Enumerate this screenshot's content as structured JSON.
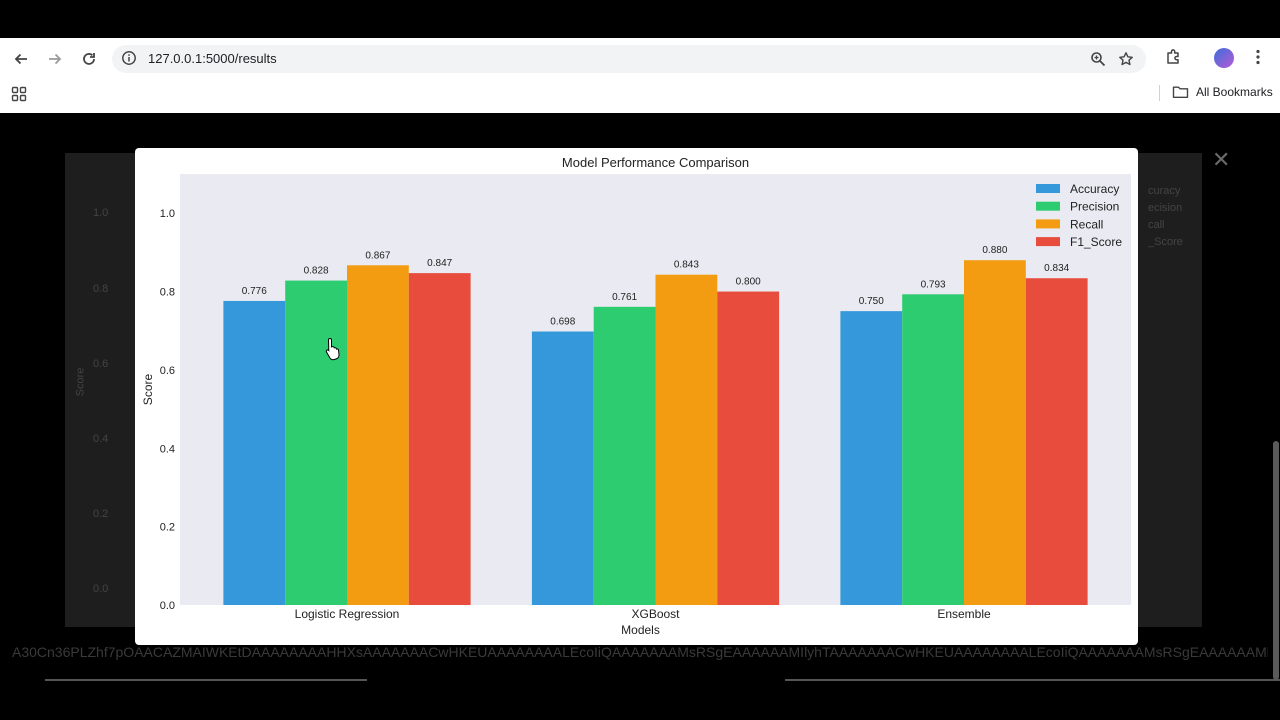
{
  "browser": {
    "url": "127.0.0.1:5000/results",
    "bookmarks_label": "All Bookmarks"
  },
  "background": {
    "y_ticks": [
      "1.0",
      "0.8",
      "0.6",
      "0.4",
      "0.2",
      "0.0"
    ],
    "ylabel": "Score",
    "legend": [
      "curacy",
      "ecision",
      "call",
      "_Score"
    ],
    "encoded_text": "A30Cn36PLZhf7pOAACAZMAIWKEtDAAAAAAAAHHXsAAAAAAACwHKEUAAAAAAAALEcoIiQAAAAAAAMsRSgEAAAAAAMIlyhTAAAAAAACwHKEUAAAAAAAALEcoIiQAAAAAAAMsRSgEAAAAAAMlyhTAAAAAAACwHKEUAAAAAAAALEcoIiQAAAAAAAMsRSgEAAAAAAA",
    "close_symbol": "✕"
  },
  "chart_data": {
    "type": "bar",
    "title": "Model Performance Comparison",
    "xlabel": "Models",
    "ylabel": "Score",
    "ylim": [
      0,
      1.1
    ],
    "yticks": [
      0.0,
      0.2,
      0.4,
      0.6,
      0.8,
      1.0
    ],
    "categories": [
      "Logistic Regression",
      "XGBoost",
      "Ensemble"
    ],
    "series": [
      {
        "name": "Accuracy",
        "color": "#3498db",
        "values": [
          0.776,
          0.698,
          0.75
        ],
        "labels": [
          "0.776",
          "0.698",
          "0.750"
        ]
      },
      {
        "name": "Precision",
        "color": "#2ecc71",
        "values": [
          0.828,
          0.761,
          0.793
        ],
        "labels": [
          "0.828",
          "0.761",
          "0.793"
        ]
      },
      {
        "name": "Recall",
        "color": "#f39c12",
        "values": [
          0.867,
          0.843,
          0.88
        ],
        "labels": [
          "0.867",
          "0.843",
          "0.880"
        ]
      },
      {
        "name": "F1_Score",
        "color": "#e74c3c",
        "values": [
          0.847,
          0.8,
          0.834
        ],
        "labels": [
          "0.847",
          "0.800",
          "0.834"
        ]
      }
    ],
    "legend_position": "top-right",
    "grid": false,
    "plot_background": "#eaeaf2"
  }
}
